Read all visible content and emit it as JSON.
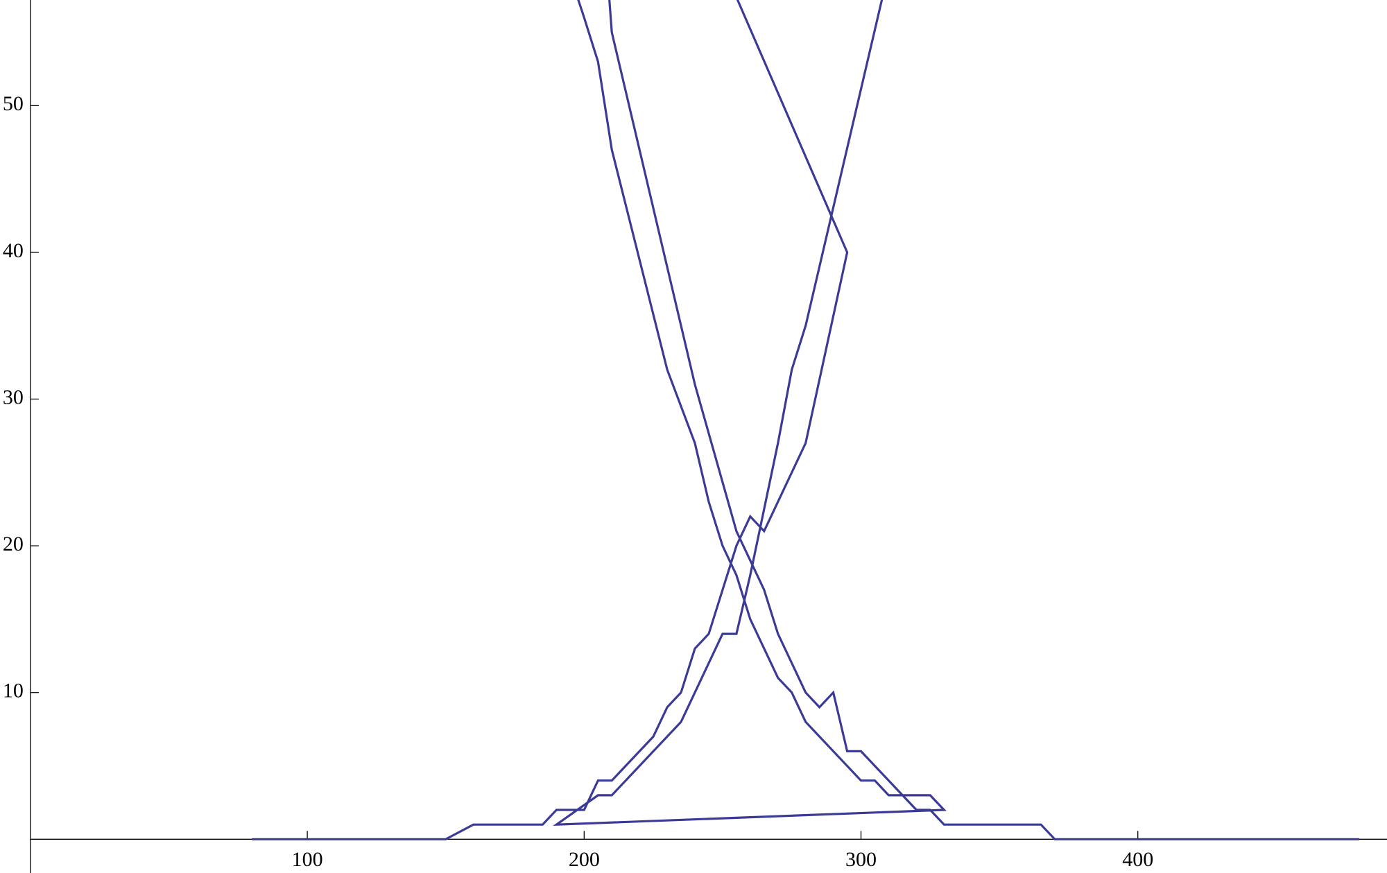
{
  "chart_data": {
    "type": "line",
    "x": [
      80,
      150,
      160,
      185,
      190,
      200,
      205,
      210,
      225,
      230,
      235,
      240,
      245,
      255,
      260,
      265,
      280,
      295,
      249,
      193,
      200,
      205,
      210,
      230,
      240,
      245,
      250,
      255,
      260,
      270,
      275,
      280,
      300,
      305,
      310,
      325,
      330,
      190,
      205,
      210,
      235,
      250,
      255,
      260,
      270,
      275,
      280,
      311,
      208,
      210,
      240,
      255,
      265,
      270,
      280,
      285,
      290,
      295,
      300,
      320,
      325,
      330,
      365,
      370,
      480
    ],
    "series": [
      {
        "color": "#3b3b96",
        "values": [
          0,
          0,
          1,
          1,
          2,
          2,
          4,
          4,
          7,
          9,
          10,
          13,
          14,
          20,
          22,
          21,
          27,
          40,
          60,
          60,
          56,
          53,
          47,
          32,
          27,
          23,
          20,
          18,
          15,
          11,
          10,
          8,
          4,
          4,
          3,
          3,
          2,
          1,
          3,
          3,
          8,
          14,
          14,
          18,
          27,
          32,
          35,
          60,
          60,
          55,
          31,
          21,
          17,
          14,
          10,
          9,
          10,
          6,
          6,
          2,
          2,
          1,
          1,
          0,
          0
        ]
      }
    ],
    "xlim": [
      -11,
      490
    ],
    "ylim": [
      -2.3,
      57.2
    ],
    "xticks": [
      100,
      200,
      300,
      400
    ],
    "yticks": [
      10,
      20,
      30,
      40,
      50
    ]
  }
}
